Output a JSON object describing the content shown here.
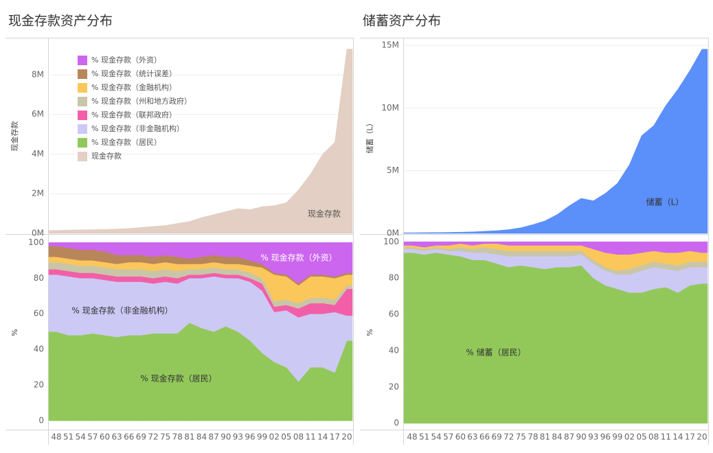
{
  "chart_data": [
    {
      "type": "area",
      "title": "现金存款资产分布",
      "ylabel": "现金存款",
      "legend": "top-left",
      "grid": true,
      "categories": [
        "48",
        "51",
        "54",
        "57",
        "60",
        "63",
        "66",
        "69",
        "72",
        "75",
        "78",
        "81",
        "84",
        "87",
        "90",
        "93",
        "96",
        "99",
        "02",
        "05",
        "08",
        "11",
        "14",
        "17",
        "20"
      ],
      "series": [
        {
          "name": "现金存款",
          "color": "#e3cfc3",
          "values": [
            0.15,
            0.17,
            0.18,
            0.19,
            0.2,
            0.22,
            0.25,
            0.3,
            0.35,
            0.4,
            0.5,
            0.6,
            0.8,
            0.95,
            1.1,
            1.25,
            1.2,
            1.35,
            1.4,
            1.55,
            2.2,
            3.0,
            4.0,
            4.6,
            9.3
          ]
        }
      ],
      "ylim": [
        0,
        9.8
      ],
      "yticks": [
        {
          "value": 0,
          "label": "0M"
        },
        {
          "value": 2,
          "label": "2M"
        },
        {
          "value": 4,
          "label": "4M"
        },
        {
          "value": 6,
          "label": "6M"
        },
        {
          "value": 8,
          "label": "8M"
        }
      ],
      "lower": {
        "type": "stacked_area",
        "ylabel": "%",
        "grid": true,
        "ylim": [
          -5,
          104
        ],
        "yticks": [
          0,
          20,
          40,
          60,
          80,
          100
        ],
        "series": [
          {
            "name": "% 现金存款（居民）",
            "color": "#92c85a",
            "values": [
              50,
              48,
              48,
              49,
              48,
              47,
              48,
              48,
              49,
              49,
              49,
              55,
              52,
              50,
              53,
              50,
              45,
              38,
              33,
              30,
              22,
              30,
              30,
              27,
              45
            ]
          },
          {
            "name": "% 现金存款（非金融机构）",
            "color": "#cdc9f5",
            "values": [
              32,
              33,
              32,
              31,
              31,
              31,
              30,
              30,
              28,
              29,
              28,
              25,
              28,
              31,
              27,
              30,
              33,
              35,
              28,
              32,
              36,
              30,
              30,
              34,
              14
            ]
          },
          {
            "name": "% 现金存款（联邦政府）",
            "color": "#f25fa8",
            "values": [
              3,
              3,
              3,
              3,
              3,
              3,
              3,
              3,
              3,
              3,
              3,
              2,
              2,
              2,
              2,
              2,
              2,
              4,
              3,
              3,
              5,
              6,
              6,
              4,
              15
            ]
          },
          {
            "name": "% 现金存款（州和地方政府）",
            "color": "#c9c6a8",
            "values": [
              4,
              4,
              4,
              4,
              4,
              4,
              4,
              4,
              4,
              4,
              4,
              3,
              3,
              3,
              3,
              3,
              3,
              3,
              3,
              3,
              3,
              3,
              3,
              3,
              2
            ]
          },
          {
            "name": "% 现金存款（金融机构）",
            "color": "#fbc75a",
            "values": [
              3,
              3,
              3,
              3,
              3,
              3,
              4,
              4,
              4,
              4,
              4,
              3,
              3,
              3,
              3,
              3,
              4,
              6,
              15,
              13,
              10,
              12,
              12,
              12,
              6
            ]
          },
          {
            "name": "% 现金存款（统计误差）",
            "color": "#b8865a",
            "values": [
              6,
              6,
              6,
              6,
              6,
              5,
              4,
              4,
              4,
              4,
              4,
              3,
              4,
              4,
              4,
              4,
              3,
              2,
              1,
              1,
              1,
              1,
              1,
              1,
              1
            ]
          },
          {
            "name": "% 现金存款（外资）",
            "color": "#cc66ee",
            "values": [
              2,
              3,
              4,
              4,
              5,
              7,
              7,
              7,
              8,
              7,
              8,
              9,
              8,
              7,
              8,
              8,
              10,
              12,
              17,
              18,
              23,
              18,
              18,
              19,
              17
            ]
          }
        ]
      }
    },
    {
      "type": "area",
      "title": "储蓄资产分布",
      "ylabel": "储蓄（L）",
      "grid": true,
      "categories": [
        "48",
        "51",
        "54",
        "57",
        "60",
        "63",
        "66",
        "69",
        "72",
        "75",
        "78",
        "81",
        "84",
        "87",
        "90",
        "93",
        "96",
        "99",
        "02",
        "05",
        "08",
        "11",
        "14",
        "17",
        "20"
      ],
      "series": [
        {
          "name": "储蓄（L）",
          "color": "#5b8ff9",
          "values": [
            0.05,
            0.06,
            0.07,
            0.08,
            0.1,
            0.12,
            0.17,
            0.22,
            0.3,
            0.45,
            0.7,
            1.0,
            1.5,
            2.2,
            2.8,
            2.6,
            3.2,
            4.0,
            5.5,
            7.8,
            8.6,
            10.2,
            11.5,
            13.0,
            14.7
          ]
        }
      ],
      "ylim": [
        0,
        15.5
      ],
      "yticks": [
        {
          "value": 0,
          "label": "0M"
        },
        {
          "value": 5,
          "label": "5M"
        },
        {
          "value": 10,
          "label": "10M"
        },
        {
          "value": 15,
          "label": "15M"
        }
      ],
      "lower": {
        "type": "stacked_area",
        "ylabel": "%",
        "grid": true,
        "ylim": [
          -3.5,
          103.5
        ],
        "yticks": [
          0,
          20,
          40,
          60,
          80,
          100
        ],
        "series": [
          {
            "name": "% 储蓄（居民）",
            "color": "#92c85a",
            "values": [
              94,
              93,
              94,
              93,
              92,
              90,
              90,
              88,
              86,
              87,
              86,
              85,
              86,
              86,
              87,
              80,
              76,
              74,
              72,
              72,
              74,
              75,
              72,
              76,
              77
            ]
          },
          {
            "color": "#cdc9f5",
            "values": [
              2,
              2,
              2,
              2,
              3,
              4,
              4,
              5,
              6,
              5,
              6,
              7,
              6,
              6,
              6,
              8,
              8,
              8,
              10,
              12,
              12,
              10,
              12,
              10,
              9
            ]
          },
          {
            "color": "#c9c6a8",
            "values": [
              1,
              1,
              1,
              1,
              2,
              2,
              3,
              3,
              3,
              3,
              3,
              3,
              3,
              3,
              2,
              2,
              2,
              2,
              3,
              3,
              3,
              3,
              3,
              3,
              3
            ]
          },
          {
            "color": "#fbc75a",
            "values": [
              1,
              1,
              1,
              2,
              2,
              2,
              2,
              3,
              3,
              3,
              3,
              3,
              3,
              3,
              3,
              6,
              8,
              9,
              8,
              7,
              6,
              6,
              7,
              6,
              5
            ]
          },
          {
            "color": "#cc66ee",
            "values": [
              2,
              3,
              2,
              2,
              1,
              2,
              1,
              1,
              2,
              2,
              2,
              2,
              2,
              2,
              2,
              4,
              6,
              7,
              7,
              6,
              5,
              6,
              6,
              5,
              6
            ]
          }
        ]
      }
    }
  ]
}
